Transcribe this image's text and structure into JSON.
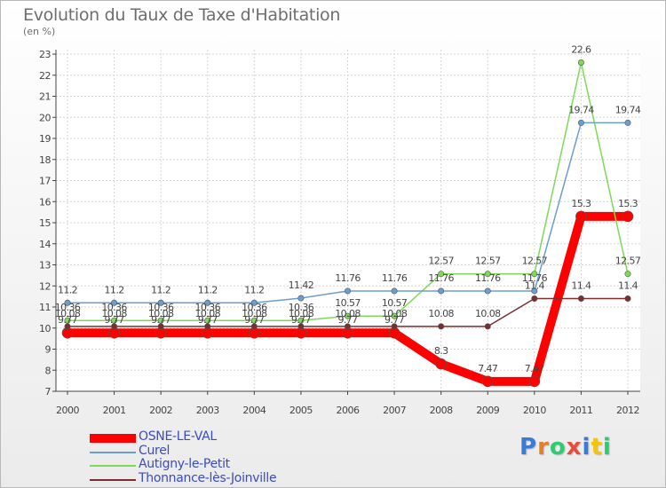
{
  "title": "Evolution du Taux de Taxe d'Habitation",
  "subtitle": "(en %)",
  "logo": {
    "text": "Proxiti",
    "letters": [
      "P",
      "r",
      "o",
      "x",
      "i",
      "t",
      "i"
    ],
    "colors": [
      "#3a7bd5",
      "#e67e22",
      "#2ecc71",
      "#e74c3c",
      "#3a7bd5",
      "#f1c40f",
      "#2ecc71"
    ]
  },
  "chart_data": {
    "type": "line",
    "x": [
      "2000",
      "2001",
      "2002",
      "2003",
      "2004",
      "2005",
      "2006",
      "2007",
      "2008",
      "2009",
      "2010",
      "2011",
      "2012"
    ],
    "ylim": [
      7,
      23
    ],
    "yticks": [
      "7",
      "8",
      "9",
      "10",
      "11",
      "12",
      "13",
      "14",
      "15",
      "16",
      "17",
      "18",
      "19",
      "20",
      "21",
      "22",
      "23"
    ],
    "grid": true,
    "legend_position": "bottom-left",
    "series": [
      {
        "name": "OSNE-LE-VAL",
        "color": "#ff0000",
        "width": 10,
        "values": [
          9.77,
          9.77,
          9.77,
          9.77,
          9.77,
          9.77,
          9.77,
          9.77,
          8.3,
          7.47,
          7.47,
          15.3,
          15.3
        ],
        "labels": [
          "9.77",
          "9.77",
          "9.77",
          "9.77",
          "9.77",
          "9.77",
          "9.77",
          "9.77",
          "8.3",
          "7.47",
          "7.47",
          "15.3",
          "15.3"
        ]
      },
      {
        "name": "Curel",
        "color": "#6b9ed0",
        "width": 1.5,
        "values": [
          11.2,
          11.2,
          11.2,
          11.2,
          11.2,
          11.42,
          11.76,
          11.76,
          11.76,
          11.76,
          11.76,
          19.74,
          19.74
        ],
        "labels": [
          "11.2",
          "11.2",
          "11.2",
          "11.2",
          "11.2",
          "11.42",
          "11.76",
          "11.76",
          "11.76",
          "11.76",
          "11.76",
          "19.74",
          "19.74"
        ]
      },
      {
        "name": "Autigny-le-Petit",
        "color": "#7ed957",
        "width": 1.5,
        "values": [
          10.36,
          10.36,
          10.36,
          10.36,
          10.36,
          10.36,
          10.57,
          10.57,
          12.57,
          12.57,
          12.57,
          22.6,
          12.57
        ],
        "labels": [
          "10.36",
          "10.36",
          "10.36",
          "10.36",
          "10.36",
          "10.36",
          "10.57",
          "10.57",
          "12.57",
          "12.57",
          "12.57",
          "22.6",
          "12.57"
        ]
      },
      {
        "name": "Thonnance-lès-Joinville",
        "color": "#7a2e2e",
        "width": 1.5,
        "values": [
          10.08,
          10.08,
          10.08,
          10.08,
          10.08,
          10.08,
          10.08,
          10.08,
          10.08,
          10.08,
          11.4,
          11.4,
          11.4
        ],
        "labels": [
          "10.08",
          "10.08",
          "10.08",
          "10.08",
          "10.08",
          "10.08",
          "10.08",
          "10.08",
          "10.08",
          "10.08",
          "11.4",
          "11.4",
          "11.4"
        ]
      }
    ]
  }
}
